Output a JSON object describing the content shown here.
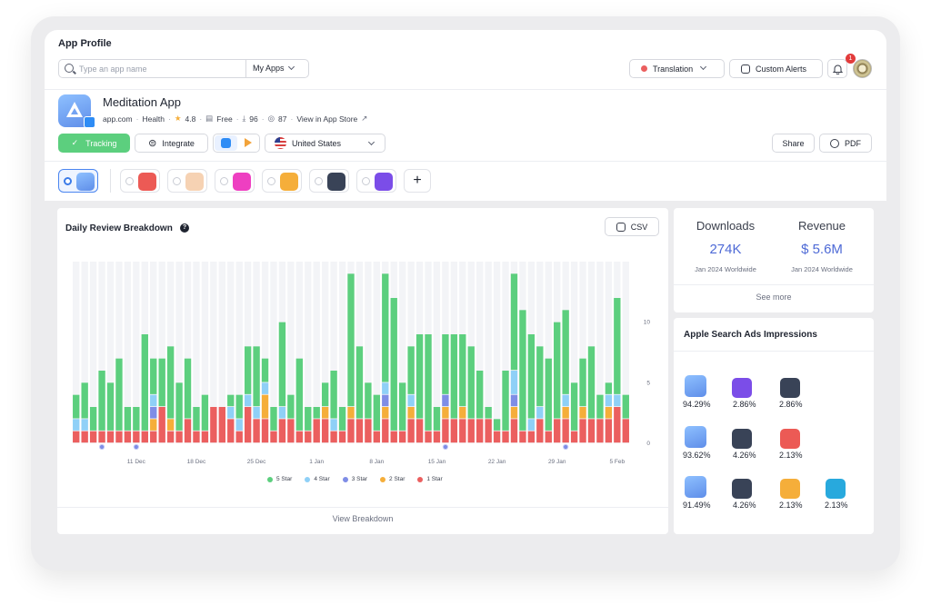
{
  "header": {
    "title": "App Profile"
  },
  "search": {
    "placeholder": "Type an app name",
    "scope_label": "My Apps"
  },
  "toolbar": {
    "translation_label": "Translation",
    "custom_alerts_label": "Custom Alerts",
    "notification_count": "1"
  },
  "app": {
    "name": "Meditation App",
    "developer": "app.com",
    "category": "Health",
    "rating": "4.8",
    "price": "Free",
    "stat_one": "96",
    "stat_two": "87",
    "store_link": "View in App Store"
  },
  "actions": {
    "tracking": "Tracking",
    "integrate": "Integrate",
    "country": "United States",
    "share": "Share",
    "pdf": "PDF"
  },
  "colors": {
    "five_star": "#5ccf7e",
    "four_star": "#8fd0f7",
    "three_star": "#7f8de6",
    "two_star": "#f5ae3a",
    "one_star": "#eb5f5f",
    "accent": "#4e6ad6",
    "tracking": "#4fc36f"
  },
  "review_panel": {
    "title": "Daily Review Breakdown",
    "csv_label": "CSV",
    "view_breakdown": "View Breakdown"
  },
  "chart_data": {
    "type": "bar",
    "stacked": true,
    "categories": [
      "Dec 4",
      "Dec 5",
      "Dec 6",
      "Dec 7",
      "Dec 8",
      "Dec 9",
      "Dec 10",
      "Dec 11",
      "Dec 12",
      "Dec 13",
      "Dec 14",
      "Dec 15",
      "Dec 16",
      "Dec 17",
      "Dec 18",
      "Dec 19",
      "Dec 20",
      "Dec 21",
      "Dec 22",
      "Dec 23",
      "Dec 24",
      "Dec 25",
      "Dec 26",
      "Dec 27",
      "Dec 28",
      "Dec 29",
      "Dec 30",
      "Dec 31",
      "Jan 1",
      "Jan 2",
      "Jan 3",
      "Jan 4",
      "Jan 5",
      "Jan 6",
      "Jan 7",
      "Jan 8",
      "Jan 9",
      "Jan 10",
      "Jan 11",
      "Jan 12",
      "Jan 13",
      "Jan 14",
      "Jan 15",
      "Jan 16",
      "Jan 17",
      "Jan 18",
      "Jan 19",
      "Jan 20",
      "Jan 21",
      "Jan 22",
      "Jan 23",
      "Jan 24",
      "Jan 25",
      "Jan 26",
      "Jan 27",
      "Jan 28",
      "Jan 29",
      "Jan 30",
      "Jan 31",
      "Feb 1",
      "Feb 2",
      "Feb 3",
      "Feb 4",
      "Feb 5",
      "Feb 6"
    ],
    "x_tick_labels": [
      "11 Dec",
      "18 Dec",
      "25 Dec",
      "1 Jan",
      "8 Jan",
      "15 Jan",
      "22 Jan",
      "29 Jan",
      "5 Feb"
    ],
    "x_tick_index": [
      7,
      14,
      21,
      28,
      35,
      42,
      49,
      56,
      63
    ],
    "y_ticks": [
      0,
      5,
      10
    ],
    "ylim": [
      0,
      15
    ],
    "markers_index": [
      3,
      7,
      43,
      57
    ],
    "series": [
      {
        "name": "1 Star",
        "values": [
          1,
          1,
          1,
          1,
          1,
          1,
          1,
          1,
          1,
          1,
          3,
          1,
          1,
          2,
          1,
          1,
          3,
          3,
          2,
          1,
          3,
          2,
          2,
          1,
          2,
          2,
          1,
          1,
          2,
          2,
          1,
          1,
          2,
          2,
          2,
          1,
          2,
          1,
          1,
          2,
          2,
          1,
          1,
          2,
          2,
          2,
          2,
          2,
          2,
          1,
          1,
          2,
          1,
          1,
          2,
          1,
          2,
          2,
          1,
          2,
          2,
          2,
          2,
          3,
          2
        ]
      },
      {
        "name": "2 Star",
        "values": [
          0,
          0,
          0,
          0,
          0,
          0,
          0,
          0,
          0,
          1,
          0,
          1,
          0,
          0,
          0,
          0,
          0,
          0,
          0,
          0,
          0,
          0,
          2,
          0,
          0,
          0,
          0,
          0,
          0,
          1,
          0,
          0,
          1,
          0,
          0,
          0,
          1,
          0,
          0,
          1,
          0,
          0,
          0,
          1,
          0,
          1,
          0,
          0,
          0,
          0,
          0,
          1,
          0,
          0,
          0,
          0,
          0,
          1,
          0,
          1,
          0,
          0,
          1,
          0,
          0
        ]
      },
      {
        "name": "3 Star",
        "values": [
          0,
          0,
          0,
          0,
          0,
          0,
          0,
          0,
          0,
          1,
          0,
          0,
          0,
          0,
          0,
          0,
          0,
          0,
          0,
          0,
          0,
          0,
          0,
          0,
          0,
          0,
          0,
          0,
          0,
          0,
          0,
          0,
          0,
          0,
          0,
          0,
          1,
          0,
          0,
          0,
          0,
          0,
          0,
          1,
          0,
          0,
          0,
          0,
          0,
          0,
          0,
          1,
          0,
          0,
          0,
          0,
          0,
          0,
          0,
          0,
          0,
          0,
          0,
          0,
          0
        ]
      },
      {
        "name": "4 Star",
        "values": [
          1,
          1,
          0,
          0,
          0,
          0,
          0,
          0,
          0,
          1,
          0,
          0,
          0,
          0,
          0,
          0,
          0,
          0,
          1,
          1,
          1,
          1,
          1,
          0,
          1,
          0,
          0,
          0,
          0,
          0,
          1,
          0,
          0,
          0,
          0,
          0,
          1,
          0,
          0,
          1,
          0,
          0,
          0,
          0,
          0,
          0,
          0,
          0,
          0,
          0,
          0,
          2,
          0,
          1,
          1,
          0,
          0,
          1,
          0,
          0,
          0,
          0,
          1,
          1,
          0
        ]
      },
      {
        "name": "5 Star",
        "values": [
          2,
          3,
          2,
          5,
          4,
          6,
          2,
          2,
          8,
          3,
          4,
          6,
          4,
          5,
          2,
          3,
          0,
          0,
          1,
          2,
          4,
          5,
          2,
          2,
          7,
          2,
          6,
          2,
          1,
          2,
          4,
          2,
          11,
          6,
          3,
          3,
          9,
          11,
          4,
          4,
          7,
          8,
          2,
          5,
          7,
          6,
          6,
          4,
          1,
          1,
          5,
          8,
          10,
          7,
          5,
          6,
          8,
          7,
          4,
          4,
          6,
          2,
          1,
          8,
          2
        ]
      }
    ]
  },
  "downloads": {
    "label": "Downloads",
    "value": "274K",
    "sub": "Jan 2024 Worldwide"
  },
  "revenue": {
    "label": "Revenue",
    "value": "$ 5.6M",
    "sub": "Jan 2024 Worldwide"
  },
  "see_more": "See more",
  "asa": {
    "title": "Apple Search Ads Impressions",
    "rows": [
      [
        "94.29%",
        "2.86%",
        "2.86%"
      ],
      [
        "93.62%",
        "4.26%",
        "2.13%"
      ],
      [
        "91.49%",
        "4.26%",
        "2.13%",
        "2.13%"
      ]
    ]
  },
  "icons": [
    "search-icon",
    "chevron-down-icon",
    "bell-icon",
    "alert-icon",
    "check-icon",
    "integrate-icon",
    "app-store-icon",
    "google-play-icon",
    "us-flag-icon",
    "download-icon",
    "plus-icon",
    "help-icon"
  ]
}
